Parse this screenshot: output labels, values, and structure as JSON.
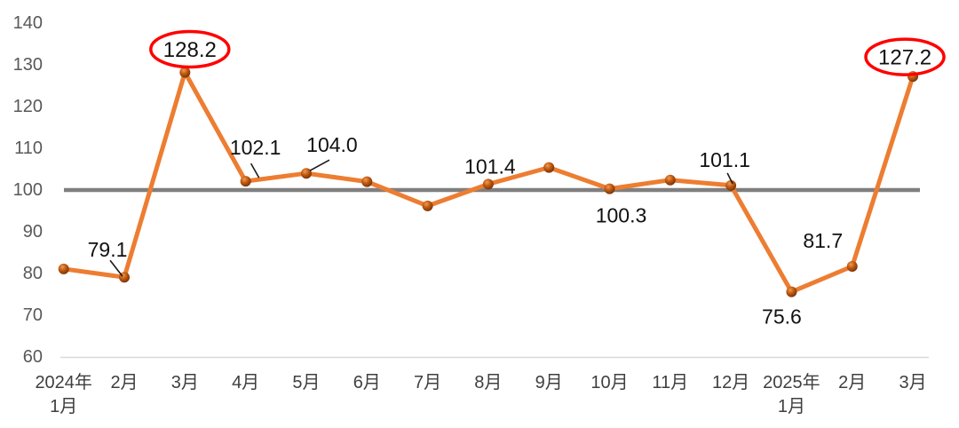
{
  "chart_data": {
    "type": "line",
    "title": "",
    "categories": [
      "2024年1月",
      "2月",
      "3月",
      "4月",
      "5月",
      "6月",
      "7月",
      "8月",
      "9月",
      "10月",
      "11月",
      "12月",
      "2025年1月",
      "2月",
      "3月"
    ],
    "x_tick_lines": [
      [
        "2024年",
        "1月"
      ],
      [
        "2月"
      ],
      [
        "3月"
      ],
      [
        "4月"
      ],
      [
        "5月"
      ],
      [
        "6月"
      ],
      [
        "7月"
      ],
      [
        "8月"
      ],
      [
        "9月"
      ],
      [
        "10月"
      ],
      [
        "11月"
      ],
      [
        "12月"
      ],
      [
        "2025年",
        "1月"
      ],
      [
        "2月"
      ],
      [
        "3月"
      ]
    ],
    "values": [
      81.1,
      79.1,
      128.2,
      102.1,
      104.0,
      102.0,
      96.2,
      101.4,
      105.4,
      100.3,
      102.4,
      101.1,
      75.6,
      81.7,
      127.2
    ],
    "data_labels": [
      "",
      "79.1",
      "128.2",
      "102.1",
      "104.0",
      "",
      "",
      "101.4",
      "",
      "100.3",
      "",
      "101.1",
      "75.6",
      "81.7",
      "127.2"
    ],
    "circled_indices": [
      2,
      14
    ],
    "leader_line_indices": [
      1,
      3,
      4,
      11
    ],
    "y_ticks": [
      140,
      130,
      120,
      110,
      100,
      90,
      80,
      70,
      60
    ],
    "ylim": [
      60,
      140
    ],
    "reference_line": {
      "value": 100
    },
    "xlabel": "",
    "ylabel": "",
    "grid": false,
    "legend": false
  },
  "colors": {
    "line": "#ED7D31",
    "marker_light": "#F49A50",
    "marker_mid": "#C05A11",
    "marker_dark": "#6E2E05",
    "reference_line": "#7F7F7F",
    "axis_line": "#D9D9D9",
    "y_tick_text": "#595959",
    "x_tick_text": "#3F3F3F",
    "data_label_text": "#111111",
    "leader_line": "#1A1A1A",
    "highlight_ellipse": "#FF0000",
    "background": "#FFFFFF"
  }
}
